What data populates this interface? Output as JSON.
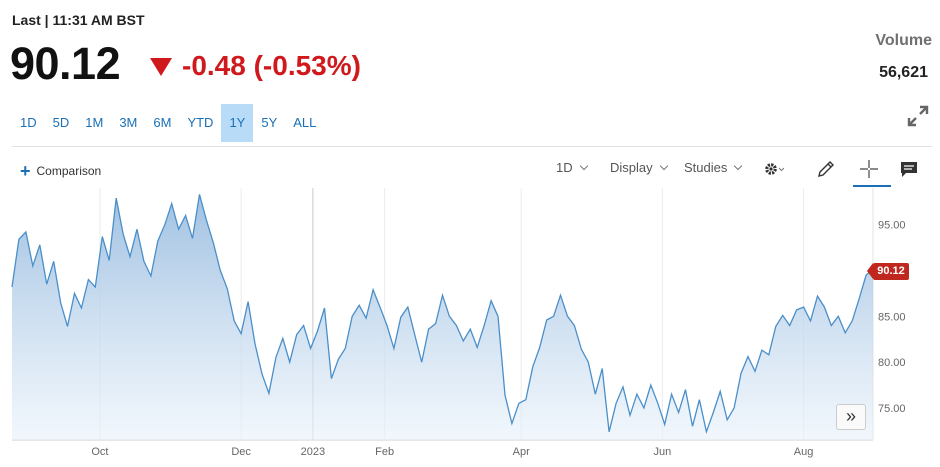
{
  "quote": {
    "last_label": "Last | 11:31 AM BST",
    "price": "90.12",
    "change": "-0.48 (-0.53%)",
    "volume_label": "Volume",
    "volume_value": "56,621"
  },
  "ranges": [
    {
      "label": "1D",
      "active": false
    },
    {
      "label": "5D",
      "active": false
    },
    {
      "label": "1M",
      "active": false
    },
    {
      "label": "3M",
      "active": false
    },
    {
      "label": "6M",
      "active": false
    },
    {
      "label": "YTD",
      "active": false
    },
    {
      "label": "1Y",
      "active": true
    },
    {
      "label": "5Y",
      "active": false
    },
    {
      "label": "ALL",
      "active": false
    }
  ],
  "toolbar": {
    "comparison_label": "Comparison",
    "interval_label": "1D",
    "display_label": "Display",
    "studies_label": "Studies"
  },
  "icons": {
    "expand": "expand-icon",
    "settings": "gear-icon",
    "draw": "pencil-icon",
    "crosshair": "crosshair-icon",
    "comment": "comment-icon",
    "scroll": "double-chevron-right-icon"
  },
  "colors": {
    "accent": "#1a6fb6",
    "down": "#d0191d",
    "line": "#4a8fc9",
    "badge": "#c0281f"
  },
  "chart_data": {
    "type": "area",
    "title": "",
    "xlabel": "",
    "ylabel": "",
    "ylim": [
      71.5,
      99
    ],
    "yticks": [
      75,
      80,
      85,
      90,
      95
    ],
    "ytick_labels": [
      "75.00",
      "80.00",
      "85.00",
      "90.00",
      "95.00"
    ],
    "xticks": [
      {
        "label": "Oct",
        "date": "2022-10-01"
      },
      {
        "label": "Dec",
        "date": "2022-12-01"
      },
      {
        "label": "2023",
        "date": "2023-01-01"
      },
      {
        "label": "Feb",
        "date": "2023-02-01"
      },
      {
        "label": "Apr",
        "date": "2023-04-01"
      },
      {
        "label": "Jun",
        "date": "2023-06-01"
      },
      {
        "label": "Aug",
        "date": "2023-08-01"
      }
    ],
    "last_value_label": "90.12",
    "series": [
      {
        "points": [
          [
            "2022-08-24",
            88.2
          ],
          [
            "2022-08-27",
            93.4
          ],
          [
            "2022-08-30",
            94.2
          ],
          [
            "2022-09-02",
            90.5
          ],
          [
            "2022-09-05",
            92.8
          ],
          [
            "2022-09-08",
            88.5
          ],
          [
            "2022-09-11",
            91.0
          ],
          [
            "2022-09-14",
            86.5
          ],
          [
            "2022-09-17",
            83.9
          ],
          [
            "2022-09-20",
            87.5
          ],
          [
            "2022-09-23",
            85.9
          ],
          [
            "2022-09-26",
            89.0
          ],
          [
            "2022-09-29",
            88.2
          ],
          [
            "2022-10-02",
            93.7
          ],
          [
            "2022-10-05",
            91.1
          ],
          [
            "2022-10-08",
            97.9
          ],
          [
            "2022-10-11",
            94.0
          ],
          [
            "2022-10-14",
            91.5
          ],
          [
            "2022-10-17",
            94.5
          ],
          [
            "2022-10-20",
            91.0
          ],
          [
            "2022-10-23",
            89.4
          ],
          [
            "2022-10-26",
            93.2
          ],
          [
            "2022-10-29",
            95.0
          ],
          [
            "2022-11-01",
            97.3
          ],
          [
            "2022-11-04",
            94.5
          ],
          [
            "2022-11-07",
            96.0
          ],
          [
            "2022-11-10",
            93.5
          ],
          [
            "2022-11-13",
            98.3
          ],
          [
            "2022-11-16",
            95.5
          ],
          [
            "2022-11-19",
            93.0
          ],
          [
            "2022-11-22",
            90.0
          ],
          [
            "2022-11-25",
            88.0
          ],
          [
            "2022-11-28",
            84.5
          ],
          [
            "2022-12-01",
            83.1
          ],
          [
            "2022-12-04",
            86.6
          ],
          [
            "2022-12-07",
            82.0
          ],
          [
            "2022-12-10",
            78.7
          ],
          [
            "2022-12-13",
            76.6
          ],
          [
            "2022-12-16",
            80.5
          ],
          [
            "2022-12-19",
            82.6
          ],
          [
            "2022-12-22",
            80.0
          ],
          [
            "2022-12-25",
            83.0
          ],
          [
            "2022-12-28",
            84.0
          ],
          [
            "2022-12-31",
            81.5
          ],
          [
            "2023-01-03",
            83.4
          ],
          [
            "2023-01-06",
            85.9
          ],
          [
            "2023-01-09",
            78.2
          ],
          [
            "2023-01-12",
            80.3
          ],
          [
            "2023-01-15",
            81.5
          ],
          [
            "2023-01-18",
            85.0
          ],
          [
            "2023-01-21",
            86.2
          ],
          [
            "2023-01-24",
            84.8
          ],
          [
            "2023-01-27",
            87.9
          ],
          [
            "2023-01-30",
            86.0
          ],
          [
            "2023-02-02",
            84.0
          ],
          [
            "2023-02-05",
            81.5
          ],
          [
            "2023-02-08",
            84.9
          ],
          [
            "2023-02-11",
            86.0
          ],
          [
            "2023-02-14",
            83.0
          ],
          [
            "2023-02-17",
            80.0
          ],
          [
            "2023-02-20",
            83.6
          ],
          [
            "2023-02-23",
            84.2
          ],
          [
            "2023-02-26",
            87.3
          ],
          [
            "2023-03-01",
            85.0
          ],
          [
            "2023-03-04",
            84.0
          ],
          [
            "2023-03-07",
            82.3
          ],
          [
            "2023-03-10",
            83.6
          ],
          [
            "2023-03-13",
            81.6
          ],
          [
            "2023-03-16",
            84.0
          ],
          [
            "2023-03-19",
            86.7
          ],
          [
            "2023-03-22",
            85.0
          ],
          [
            "2023-03-25",
            76.4
          ],
          [
            "2023-03-28",
            73.3
          ],
          [
            "2023-03-31",
            75.5
          ],
          [
            "2023-04-03",
            75.9
          ],
          [
            "2023-04-06",
            79.5
          ],
          [
            "2023-04-09",
            81.6
          ],
          [
            "2023-04-12",
            84.6
          ],
          [
            "2023-04-15",
            85.0
          ],
          [
            "2023-04-18",
            87.3
          ],
          [
            "2023-04-21",
            85.0
          ],
          [
            "2023-04-24",
            84.0
          ],
          [
            "2023-04-27",
            81.4
          ],
          [
            "2023-04-30",
            80.0
          ],
          [
            "2023-05-03",
            76.5
          ],
          [
            "2023-05-06",
            79.3
          ],
          [
            "2023-05-09",
            72.4
          ],
          [
            "2023-05-12",
            75.5
          ],
          [
            "2023-05-15",
            77.3
          ],
          [
            "2023-05-18",
            74.2
          ],
          [
            "2023-05-21",
            76.5
          ],
          [
            "2023-05-24",
            75.0
          ],
          [
            "2023-05-27",
            77.5
          ],
          [
            "2023-05-30",
            75.5
          ],
          [
            "2023-06-02",
            73.2
          ],
          [
            "2023-06-05",
            76.5
          ],
          [
            "2023-06-08",
            74.5
          ],
          [
            "2023-06-11",
            77.0
          ],
          [
            "2023-06-14",
            73.0
          ],
          [
            "2023-06-17",
            75.9
          ],
          [
            "2023-06-20",
            72.4
          ],
          [
            "2023-06-23",
            74.5
          ],
          [
            "2023-06-26",
            76.8
          ],
          [
            "2023-06-29",
            73.7
          ],
          [
            "2023-07-02",
            75.0
          ],
          [
            "2023-07-05",
            78.8
          ],
          [
            "2023-07-08",
            80.6
          ],
          [
            "2023-07-11",
            79.0
          ],
          [
            "2023-07-14",
            81.3
          ],
          [
            "2023-07-17",
            80.8
          ],
          [
            "2023-07-20",
            83.9
          ],
          [
            "2023-07-23",
            85.1
          ],
          [
            "2023-07-26",
            84.0
          ],
          [
            "2023-07-29",
            85.7
          ],
          [
            "2023-08-01",
            86.0
          ],
          [
            "2023-08-04",
            84.5
          ],
          [
            "2023-08-07",
            87.2
          ],
          [
            "2023-08-10",
            86.0
          ],
          [
            "2023-08-13",
            84.0
          ],
          [
            "2023-08-16",
            85.0
          ],
          [
            "2023-08-19",
            83.2
          ],
          [
            "2023-08-22",
            84.5
          ],
          [
            "2023-08-25",
            86.9
          ],
          [
            "2023-08-28",
            89.5
          ],
          [
            "2023-08-31",
            90.12
          ]
        ]
      }
    ]
  }
}
